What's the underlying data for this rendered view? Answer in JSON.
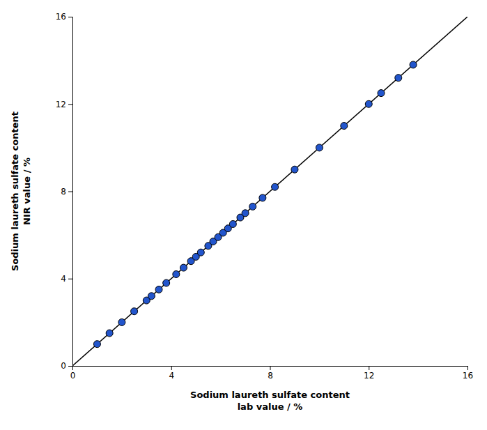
{
  "chart_data": {
    "type": "scatter",
    "xlabel": [
      "Sodium laureth sulfate content",
      "lab value / %"
    ],
    "ylabel": [
      "Sodium laureth sulfate content",
      "NIR value / %"
    ],
    "series": [
      {
        "type": "line",
        "color": "#000000",
        "x": [
          0,
          16
        ],
        "values": [
          0,
          16
        ]
      },
      {
        "type": "scatter",
        "color": "#2255cc",
        "x": [
          1.0,
          1.5,
          2.0,
          2.5,
          3.0,
          3.2,
          3.5,
          3.8,
          4.2,
          4.5,
          4.8,
          5.0,
          5.2,
          5.5,
          5.7,
          5.9,
          6.1,
          6.3,
          6.5,
          6.8,
          7.0,
          7.3,
          7.7,
          8.2,
          9.0,
          10.0,
          11.0,
          12.0,
          12.5,
          13.2,
          13.8
        ],
        "values": [
          1.0,
          1.5,
          2.0,
          2.5,
          3.0,
          3.2,
          3.5,
          3.8,
          4.2,
          4.5,
          4.8,
          5.0,
          5.2,
          5.5,
          5.7,
          5.9,
          6.1,
          6.3,
          6.5,
          6.8,
          7.0,
          7.3,
          7.7,
          8.2,
          9.0,
          10.0,
          11.0,
          12.0,
          12.5,
          13.2,
          13.8
        ]
      }
    ],
    "xlim": [
      0,
      16
    ],
    "ylim": [
      0,
      16
    ],
    "xticks": [
      0,
      4,
      8,
      12,
      16
    ],
    "yticks": [
      0,
      4,
      8,
      12,
      16
    ],
    "grid": false
  }
}
